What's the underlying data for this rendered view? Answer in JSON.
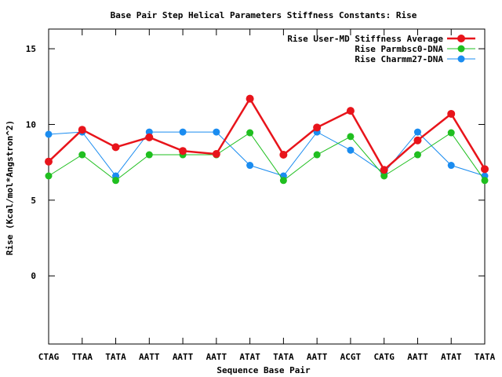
{
  "chart_data": {
    "type": "line",
    "title": "Base Pair Step Helical Parameters Stiffness Constants: Rise",
    "xlabel": "Sequence Base Pair",
    "ylabel": "Rise (Kcal/mol*Angstron^2)",
    "categories": [
      "CTAG",
      "TTAA",
      "TATA",
      "AATT",
      "AATT",
      "AATT",
      "ATAT",
      "TATA",
      "AATT",
      "ACGT",
      "CATG",
      "AATT",
      "ATAT",
      "TATA"
    ],
    "ylim": [
      -4.5,
      16.3
    ],
    "yticks": [
      "15",
      "10",
      "5",
      "0"
    ],
    "ytick_values": [
      15,
      10,
      5,
      0
    ],
    "grid": false,
    "legend_position": "top-right",
    "series": [
      {
        "name": "Rise User-MD Stiffness Average",
        "color": "#e8141b",
        "values": [
          7.55,
          9.65,
          8.5,
          9.15,
          8.25,
          8.05,
          11.7,
          8.0,
          9.8,
          10.9,
          7.0,
          8.95,
          10.7,
          7.05
        ]
      },
      {
        "name": "Rise Parmbsc0-DNA",
        "color": "#1fbf1f",
        "values": [
          6.6,
          8.0,
          6.3,
          8.0,
          8.0,
          8.0,
          9.45,
          6.3,
          8.0,
          9.2,
          6.6,
          8.0,
          9.45,
          6.3
        ]
      },
      {
        "name": "Rise Charmm27-DNA",
        "color": "#1a8cf0",
        "values": [
          9.35,
          9.5,
          6.6,
          9.5,
          9.5,
          9.5,
          7.3,
          6.6,
          9.5,
          8.3,
          6.8,
          9.5,
          7.3,
          6.6
        ]
      }
    ]
  }
}
